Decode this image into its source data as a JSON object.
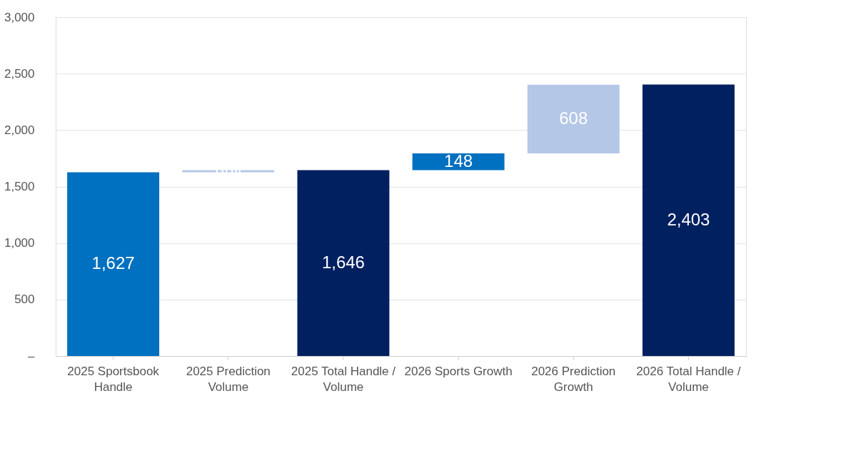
{
  "chart_data": {
    "type": "bar",
    "categories": [
      "2025 Sportsbook Handle",
      "2025 Prediction Volume",
      "2025 Total Handle / Volume",
      "2026 Sports Growth",
      "2026 Prediction Growth",
      "2026 Total Handle / Volume"
    ],
    "values": [
      1627,
      19,
      1646,
      148,
      608,
      2403
    ],
    "base": [
      0,
      1627,
      0,
      1646,
      1794,
      0
    ],
    "colors": [
      "#0070c0",
      "#b4c7e7",
      "#002060",
      "#0070c0",
      "#b4c7e7",
      "#002060"
    ],
    "value_labels": [
      "1,627",
      null,
      "1,646",
      "148",
      "608",
      "2,403"
    ],
    "ylim": [
      0,
      3000
    ],
    "yticks": [
      {
        "value": 0,
        "label": "–"
      },
      {
        "value": 500,
        "label": "500"
      },
      {
        "value": 1000,
        "label": "1,000"
      },
      {
        "value": 1500,
        "label": "1,500"
      },
      {
        "value": 2000,
        "label": "2,000"
      },
      {
        "value": 2500,
        "label": "2,500"
      },
      {
        "value": 3000,
        "label": "3,000"
      }
    ],
    "grid": "y"
  }
}
